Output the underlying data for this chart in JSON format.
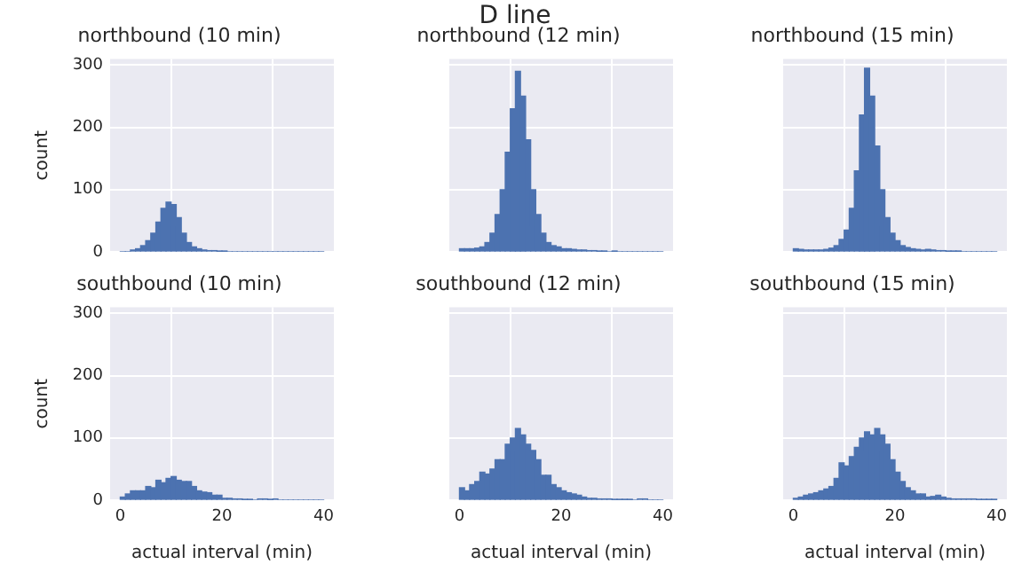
{
  "chart_data": [
    {
      "type": "other",
      "title": "D line"
    },
    {
      "type": "histogram",
      "title": "northbound (10 min)",
      "ylabel": "count",
      "tick_labels": "y",
      "grid": true,
      "color": "#4c72b0",
      "xlim": [
        -2,
        42
      ],
      "ylim": [
        0,
        310
      ],
      "xticks": [
        0,
        20,
        40
      ],
      "yticks": [
        0,
        100,
        200,
        300
      ],
      "bins": [
        0,
        1,
        2,
        3,
        4,
        5,
        6,
        7,
        8,
        9,
        10,
        11,
        12,
        13,
        14,
        15,
        16,
        17,
        18,
        19,
        20,
        21,
        22,
        23,
        24,
        25,
        26,
        27,
        28,
        29,
        30,
        31,
        32,
        33,
        34,
        35,
        36,
        37,
        38,
        39,
        40
      ],
      "values": [
        0,
        0,
        3,
        5,
        10,
        18,
        30,
        48,
        70,
        80,
        76,
        55,
        30,
        15,
        8,
        5,
        3,
        2,
        2,
        1,
        1,
        0,
        0,
        0,
        0,
        0,
        0,
        0,
        0,
        0,
        0,
        0,
        0,
        0,
        0,
        0,
        0,
        0,
        0,
        0
      ]
    },
    {
      "type": "histogram",
      "title": "northbound (12 min)",
      "tick_labels": false,
      "grid": true,
      "color": "#4c72b0",
      "xlim": [
        -2,
        42
      ],
      "ylim": [
        0,
        310
      ],
      "xticks": [
        0,
        20,
        40
      ],
      "yticks": [
        0,
        100,
        200,
        300
      ],
      "bins": [
        0,
        1,
        2,
        3,
        4,
        5,
        6,
        7,
        8,
        9,
        10,
        11,
        12,
        13,
        14,
        15,
        16,
        17,
        18,
        19,
        20,
        21,
        22,
        23,
        24,
        25,
        26,
        27,
        28,
        29,
        30,
        31,
        32,
        33,
        34,
        35,
        36,
        37,
        38,
        39,
        40
      ],
      "values": [
        5,
        5,
        5,
        6,
        8,
        15,
        30,
        60,
        100,
        160,
        230,
        290,
        250,
        180,
        100,
        60,
        30,
        15,
        10,
        8,
        5,
        5,
        4,
        3,
        3,
        2,
        2,
        1,
        1,
        0,
        1,
        0,
        0,
        0,
        0,
        0,
        0,
        0,
        0,
        0
      ]
    },
    {
      "type": "histogram",
      "title": "northbound (15 min)",
      "tick_labels": false,
      "grid": true,
      "color": "#4c72b0",
      "xlim": [
        -2,
        42
      ],
      "ylim": [
        0,
        310
      ],
      "xticks": [
        0,
        20,
        40
      ],
      "yticks": [
        0,
        100,
        200,
        300
      ],
      "bins": [
        0,
        1,
        2,
        3,
        4,
        5,
        6,
        7,
        8,
        9,
        10,
        11,
        12,
        13,
        14,
        15,
        16,
        17,
        18,
        19,
        20,
        21,
        22,
        23,
        24,
        25,
        26,
        27,
        28,
        29,
        30,
        31,
        32,
        33,
        34,
        35,
        36,
        37,
        38,
        39,
        40
      ],
      "values": [
        5,
        4,
        3,
        3,
        3,
        3,
        4,
        6,
        10,
        20,
        35,
        70,
        130,
        220,
        295,
        250,
        170,
        100,
        55,
        30,
        18,
        10,
        7,
        5,
        4,
        3,
        4,
        3,
        2,
        2,
        1,
        1,
        1,
        0,
        0,
        0,
        0,
        0,
        0,
        0
      ]
    },
    {
      "type": "histogram",
      "title": "southbound (10 min)",
      "xlabel": "actual interval (min)",
      "ylabel": "count",
      "grid": true,
      "color": "#4c72b0",
      "xlim": [
        -2,
        42
      ],
      "ylim": [
        0,
        310
      ],
      "xticks": [
        0,
        20,
        40
      ],
      "yticks": [
        0,
        100,
        200,
        300
      ],
      "bins": [
        0,
        1,
        2,
        3,
        4,
        5,
        6,
        7,
        8,
        9,
        10,
        11,
        12,
        13,
        14,
        15,
        16,
        17,
        18,
        19,
        20,
        21,
        22,
        23,
        24,
        25,
        26,
        27,
        28,
        29,
        30,
        31,
        32,
        33,
        34,
        35,
        36,
        37,
        38,
        39,
        40
      ],
      "values": [
        5,
        10,
        15,
        15,
        15,
        22,
        20,
        32,
        28,
        35,
        38,
        32,
        30,
        30,
        22,
        15,
        13,
        12,
        8,
        8,
        3,
        3,
        2,
        2,
        1,
        1,
        0,
        2,
        2,
        1,
        2,
        0,
        0,
        0,
        0,
        0,
        0,
        0,
        0,
        0
      ]
    },
    {
      "type": "histogram",
      "title": "southbound (12 min)",
      "xlabel": "actual interval (min)",
      "tick_labels": "x",
      "grid": true,
      "color": "#4c72b0",
      "xlim": [
        -2,
        42
      ],
      "ylim": [
        0,
        310
      ],
      "xticks": [
        0,
        20,
        40
      ],
      "yticks": [
        0,
        100,
        200,
        300
      ],
      "bins": [
        0,
        1,
        2,
        3,
        4,
        5,
        6,
        7,
        8,
        9,
        10,
        11,
        12,
        13,
        14,
        15,
        16,
        17,
        18,
        19,
        20,
        21,
        22,
        23,
        24,
        25,
        26,
        27,
        28,
        29,
        30,
        31,
        32,
        33,
        34,
        35,
        36,
        37,
        38,
        39,
        40
      ],
      "values": [
        20,
        15,
        25,
        30,
        45,
        42,
        50,
        65,
        65,
        90,
        100,
        115,
        105,
        90,
        80,
        65,
        40,
        40,
        25,
        20,
        15,
        12,
        10,
        8,
        5,
        3,
        3,
        2,
        2,
        2,
        1,
        1,
        1,
        1,
        0,
        2,
        2,
        0,
        0,
        0
      ]
    },
    {
      "type": "histogram",
      "title": "southbound (15 min)",
      "xlabel": "actual interval (min)",
      "tick_labels": "x",
      "grid": true,
      "color": "#4c72b0",
      "xlim": [
        -2,
        42
      ],
      "ylim": [
        0,
        310
      ],
      "xticks": [
        0,
        20,
        40
      ],
      "yticks": [
        0,
        100,
        200,
        300
      ],
      "bins": [
        0,
        1,
        2,
        3,
        4,
        5,
        6,
        7,
        8,
        9,
        10,
        11,
        12,
        13,
        14,
        15,
        16,
        17,
        18,
        19,
        20,
        21,
        22,
        23,
        24,
        25,
        26,
        27,
        28,
        29,
        30,
        31,
        32,
        33,
        34,
        35,
        36,
        37,
        38,
        39,
        40
      ],
      "values": [
        3,
        5,
        8,
        10,
        12,
        15,
        18,
        22,
        35,
        60,
        55,
        70,
        85,
        100,
        110,
        105,
        115,
        105,
        90,
        65,
        45,
        30,
        20,
        15,
        10,
        10,
        5,
        6,
        8,
        5,
        3,
        2,
        2,
        2,
        2,
        2,
        1,
        1,
        1,
        1
      ]
    }
  ]
}
